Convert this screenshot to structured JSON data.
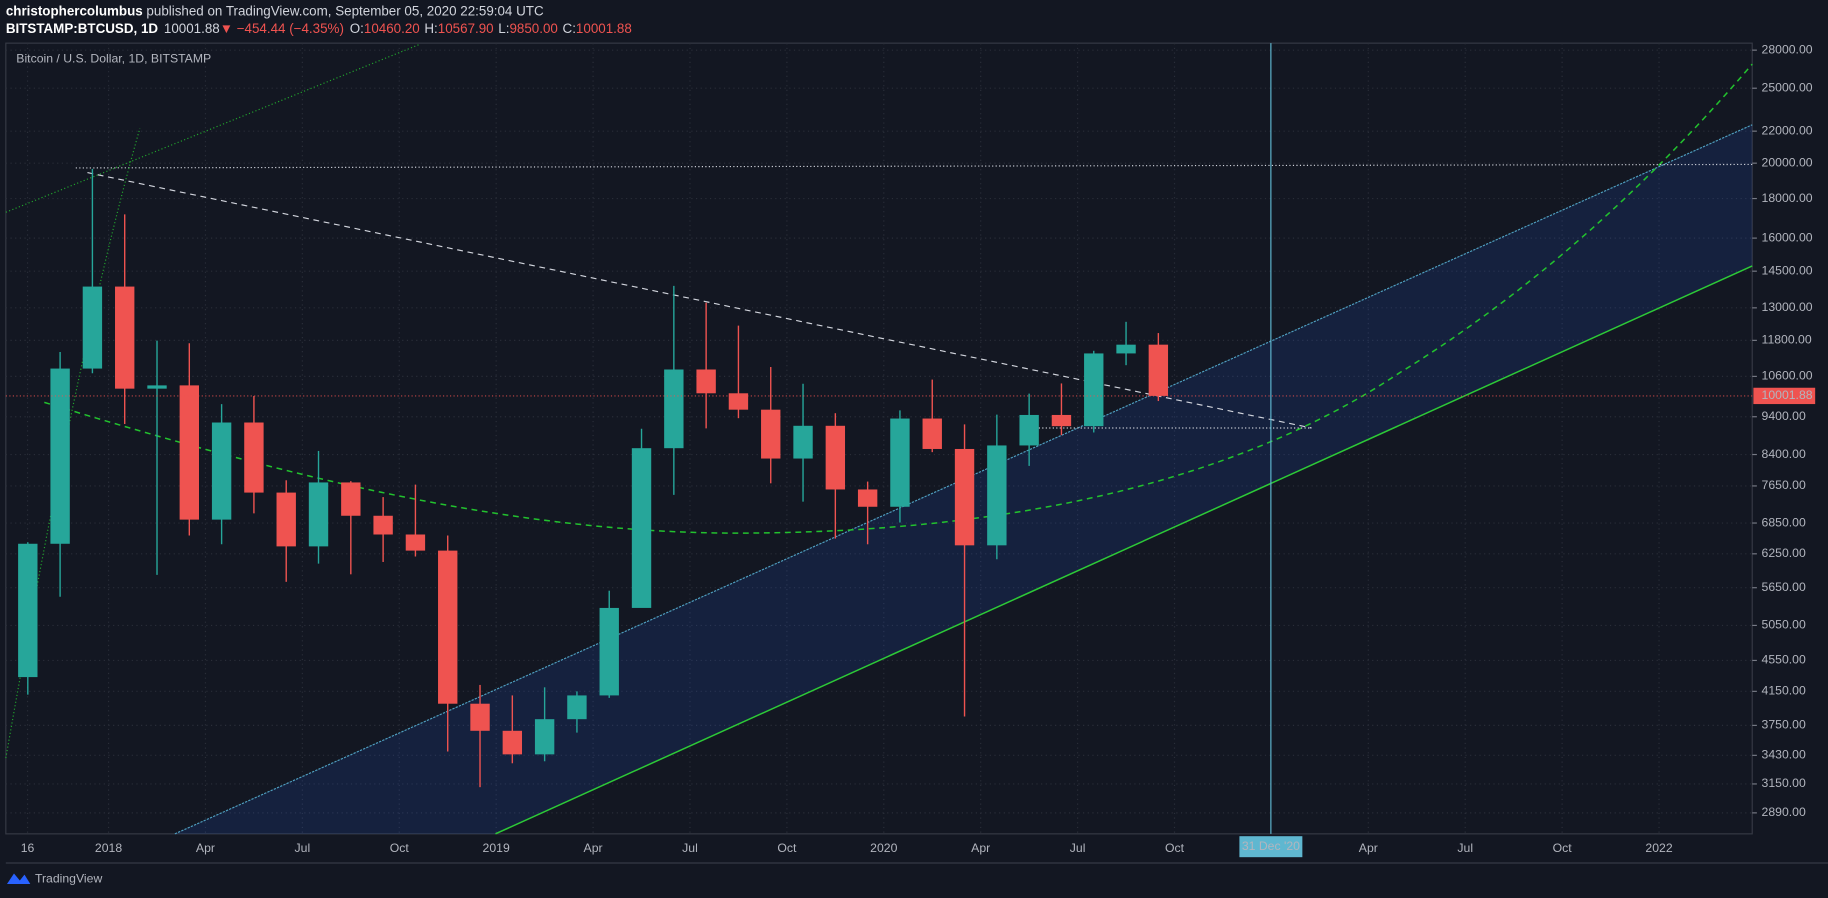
{
  "header": {
    "author": "christophercolumbus",
    "published": " published on TradingView.com, September 05, 2020 22:59:04 UTC",
    "symbol": "BITSTAMP:BTCUSD, 1D",
    "last": "10001.88",
    "change": "▼ −454.44 (−4.35%)",
    "open_label": "O:",
    "open": "10460.20",
    "high_label": "H:",
    "high": "10567.90",
    "low_label": "L:",
    "low": "9850.00",
    "close_label": "C:",
    "close": "10001.88"
  },
  "chart_data": {
    "type": "candlestick",
    "title": "Bitcoin / U.S. Dollar, 1D, BITSTAMP",
    "x": [
      "2017-10",
      "2017-11",
      "2017-12",
      "2018-01",
      "2018-02",
      "2018-03",
      "2018-04",
      "2018-05",
      "2018-06",
      "2018-07",
      "2018-08",
      "2018-09",
      "2018-10",
      "2018-11",
      "2018-12",
      "2019-01",
      "2019-02",
      "2019-03",
      "2019-04",
      "2019-05",
      "2019-06",
      "2019-07",
      "2019-08",
      "2019-09",
      "2019-10",
      "2019-11",
      "2019-12",
      "2020-01",
      "2020-02",
      "2020-03",
      "2020-04",
      "2020-05",
      "2020-06",
      "2020-07",
      "2020-08",
      "2020-09"
    ],
    "open": [
      4330,
      6440,
      10850,
      13850,
      10220,
      10320,
      6920,
      9240,
      7500,
      6390,
      7730,
      7000,
      6620,
      6310,
      4000,
      3690,
      3440,
      3820,
      4100,
      5320,
      8560,
      10820,
      10080,
      9600,
      8300,
      9150,
      7570,
      7190,
      9350,
      8540,
      6410,
      8630,
      9450,
      9140,
      11350,
      11650
    ],
    "high": [
      6470,
      11400,
      19666,
      17170,
      11790,
      11700,
      9760,
      10000,
      7780,
      8490,
      7760,
      7400,
      7680,
      6600,
      4230,
      4100,
      4200,
      4150,
      5600,
      9070,
      13880,
      13200,
      12330,
      10900,
      10370,
      9500,
      7750,
      9580,
      10500,
      9190,
      9460,
      10070,
      10380,
      11440,
      12470,
      12060
    ],
    "low": [
      4110,
      5500,
      10700,
      9200,
      5870,
      6600,
      6430,
      7050,
      5750,
      6070,
      5880,
      6100,
      6200,
      3470,
      3120,
      3350,
      3370,
      3670,
      4070,
      5330,
      7450,
      9080,
      9360,
      7710,
      7300,
      6540,
      6430,
      6860,
      8460,
      3850,
      6150,
      8120,
      8900,
      8970,
      10960,
      9850
    ],
    "close": [
      6440,
      10850,
      13850,
      10220,
      10320,
      6920,
      9240,
      7500,
      6390,
      7730,
      7000,
      6620,
      6310,
      4000,
      3690,
      3440,
      3820,
      4100,
      5320,
      8560,
      10820,
      10080,
      9600,
      8300,
      9150,
      7570,
      7190,
      9350,
      8540,
      6410,
      8630,
      9450,
      9140,
      11350,
      11650,
      10001.88
    ],
    "up_color": "#26a69a",
    "down_color": "#ef5350",
    "log_scale": true,
    "grid": true,
    "ylim": [
      2715,
      28590
    ],
    "yticks": [
      {
        "value": 28000,
        "label": "28000.00"
      },
      {
        "value": 25000,
        "label": "25000.00"
      },
      {
        "value": 22000,
        "label": "22000.00"
      },
      {
        "value": 20000,
        "label": "20000.00"
      },
      {
        "value": 18000,
        "label": "18000.00"
      },
      {
        "value": 16000,
        "label": "16000.00"
      },
      {
        "value": 14500,
        "label": "14500.00"
      },
      {
        "value": 13000,
        "label": "13000.00"
      },
      {
        "value": 11800,
        "label": "11800.00"
      },
      {
        "value": 10600,
        "label": "10600.00"
      },
      {
        "value": 9400,
        "label": "9400.00"
      },
      {
        "value": 8400,
        "label": "8400.00"
      },
      {
        "value": 7650,
        "label": "7650.00"
      },
      {
        "value": 6850,
        "label": "6850.00"
      },
      {
        "value": 6250,
        "label": "6250.00"
      },
      {
        "value": 5650,
        "label": "5650.00"
      },
      {
        "value": 5050,
        "label": "5050.00"
      },
      {
        "value": 4550,
        "label": "4550.00"
      },
      {
        "value": 4150,
        "label": "4150.00"
      },
      {
        "value": 3750,
        "label": "3750.00"
      },
      {
        "value": 3430,
        "label": "3430.00"
      },
      {
        "value": 3150,
        "label": "3150.00"
      },
      {
        "value": 2890,
        "label": "2890.00"
      }
    ],
    "xlim": [
      "2017-09-26",
      "2022-03-28"
    ],
    "xticks": [
      {
        "value": "2017-10-16",
        "label": "16"
      },
      {
        "value": "2018-01",
        "label": "2018"
      },
      {
        "value": "2018-04",
        "label": "Apr"
      },
      {
        "value": "2018-07",
        "label": "Jul"
      },
      {
        "value": "2018-10",
        "label": "Oct"
      },
      {
        "value": "2019-01",
        "label": "2019"
      },
      {
        "value": "2019-04",
        "label": "Apr"
      },
      {
        "value": "2019-07",
        "label": "Jul"
      },
      {
        "value": "2019-10",
        "label": "Oct"
      },
      {
        "value": "2020-01",
        "label": "2020"
      },
      {
        "value": "2020-04",
        "label": "Apr"
      },
      {
        "value": "2020-07",
        "label": "Jul"
      },
      {
        "value": "2020-10",
        "label": "Oct"
      },
      {
        "value": "2021-04",
        "label": "Apr"
      },
      {
        "value": "2021-07",
        "label": "Jul"
      },
      {
        "value": "2021-10",
        "label": "Oct"
      },
      {
        "value": "2022-01",
        "label": "2022"
      }
    ],
    "crosshair": {
      "value": "2020-12-31",
      "label": "31 Dec '20"
    }
  },
  "footer": {
    "brand": "TradingView"
  }
}
